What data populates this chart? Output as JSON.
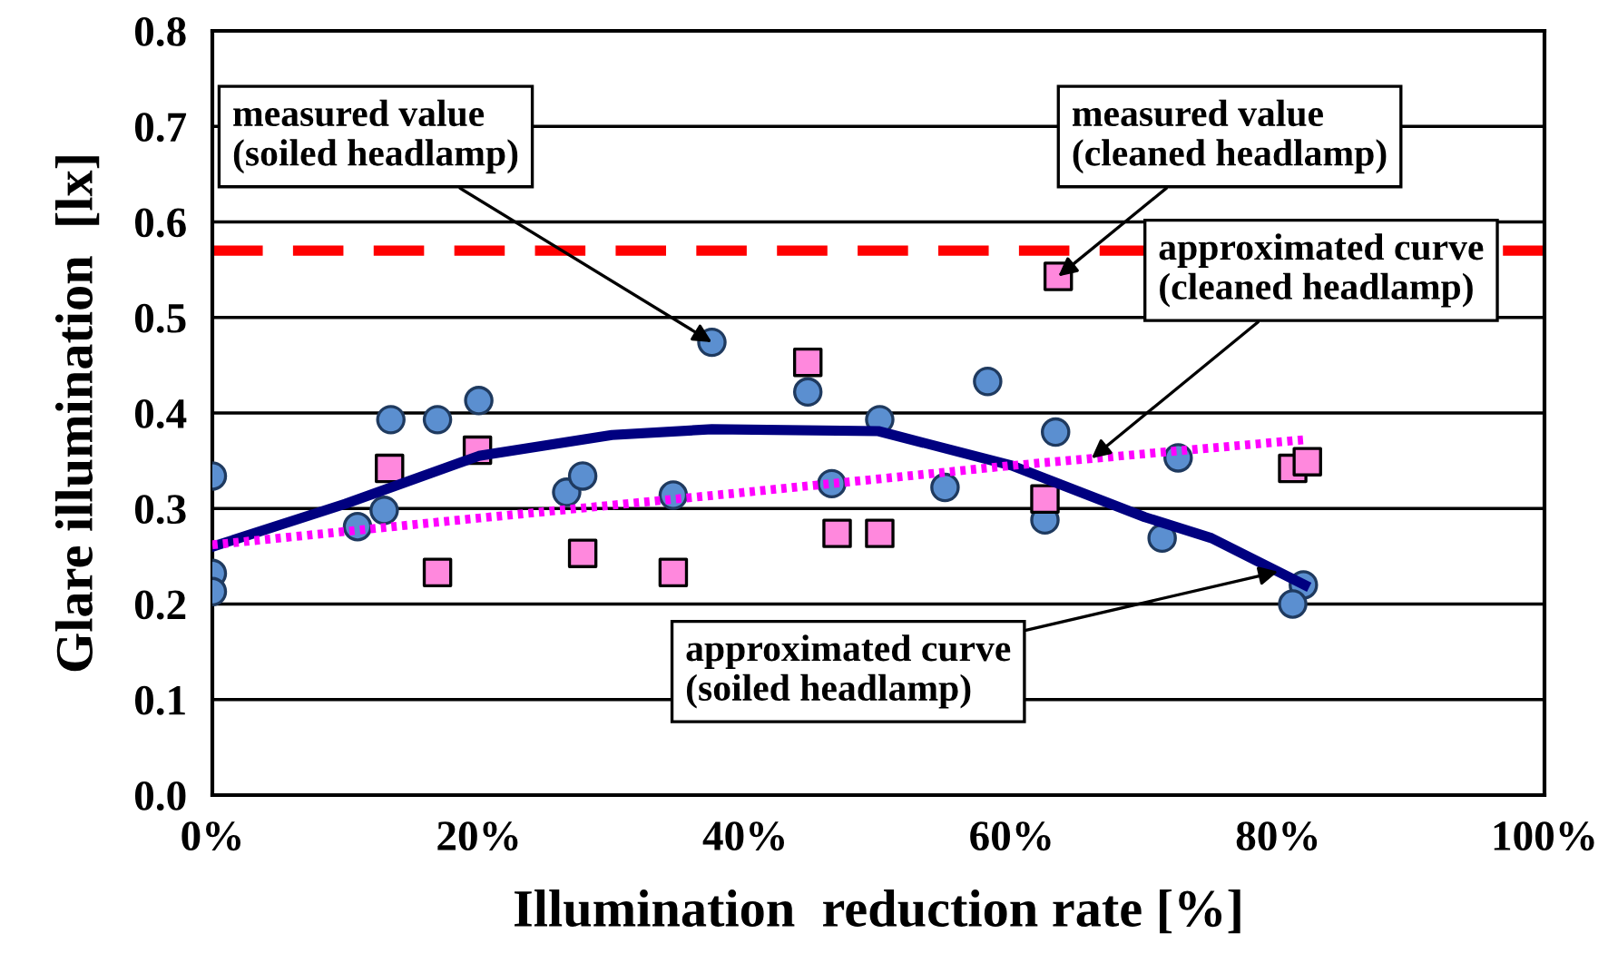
{
  "chart_data": {
    "type": "scatter",
    "xlabel": "Illumination  reduction rate [%]",
    "ylabel": "Glare illumination  [lx]",
    "xlim": [
      0,
      100
    ],
    "ylim": [
      0,
      0.8
    ],
    "xticks": [
      {
        "value": 0,
        "label": "0%"
      },
      {
        "value": 20,
        "label": "20%"
      },
      {
        "value": 40,
        "label": "40%"
      },
      {
        "value": 60,
        "label": "60%"
      },
      {
        "value": 80,
        "label": "80%"
      },
      {
        "value": 100,
        "label": "100%"
      }
    ],
    "yticks": [
      {
        "value": 0,
        "label": "0.0"
      },
      {
        "value": 0.1,
        "label": "0.1"
      },
      {
        "value": 0.2,
        "label": "0.2"
      },
      {
        "value": 0.3,
        "label": "0.3"
      },
      {
        "value": 0.4,
        "label": "0.4"
      },
      {
        "value": 0.5,
        "label": "0.5"
      },
      {
        "value": 0.6,
        "label": "0.6"
      },
      {
        "value": 0.7,
        "label": "0.7"
      },
      {
        "value": 0.8,
        "label": "0.8"
      }
    ],
    "grid": "y",
    "series": [
      {
        "type": "line",
        "color": "#000080",
        "line_style": "solid",
        "marker": "none",
        "x": [
          0,
          10,
          20,
          30,
          37.5,
          50,
          60,
          70,
          75,
          82
        ],
        "values": [
          0.26,
          0.305,
          0.355,
          0.377,
          0.383,
          0.381,
          0.345,
          0.291,
          0.269,
          0.22
        ]
      },
      {
        "type": "line",
        "color": "#ff00ff",
        "line_style": "dotted",
        "marker": "none",
        "x": [
          0,
          20,
          40,
          60,
          82
        ],
        "values": [
          0.262,
          0.29,
          0.317,
          0.345,
          0.372
        ]
      },
      {
        "color": "#5b8fd0",
        "marker": "circle",
        "x": [
          0,
          0,
          0,
          10.9,
          12.9,
          13.4,
          16.9,
          20,
          26.6,
          27.8,
          34.6,
          37.5,
          44.7,
          46.5,
          50.1,
          55,
          58.2,
          63.3,
          62.5,
          71.3,
          72.5,
          81.9,
          81.1
        ],
        "values": [
          0.334,
          0.232,
          0.213,
          0.281,
          0.298,
          0.393,
          0.393,
          0.413,
          0.317,
          0.334,
          0.314,
          0.474,
          0.422,
          0.326,
          0.393,
          0.322,
          0.433,
          0.38,
          0.288,
          0.269,
          0.353,
          0.22,
          0.2
        ]
      },
      {
        "color": "#ff88dd",
        "marker": "square",
        "x": [
          13.3,
          19.9,
          16.9,
          27.8,
          34.6,
          44.7,
          46.9,
          50.1,
          62.5,
          63.5,
          81.1,
          82.2
        ],
        "values": [
          0.342,
          0.361,
          0.233,
          0.253,
          0.233,
          0.453,
          0.274,
          0.274,
          0.31,
          0.543,
          0.342,
          0.349
        ]
      }
    ],
    "ref_lines": [
      {
        "axis": "y",
        "value": 0.57,
        "color": "#ff0000",
        "line_style": "dashed"
      }
    ],
    "annotations": [
      {
        "text": "measured value\n(soiled headlamp)",
        "x": 37.5,
        "y": 0.474
      },
      {
        "text": "measured value\n(cleaned headlamp)",
        "x": 63.5,
        "y": 0.543
      },
      {
        "text": "approximated curve\n(cleaned headlamp)",
        "x": 66,
        "y": 0.3524
      },
      {
        "text": "approximated curve\n(soiled headlamp)",
        "x": 80,
        "y": 0.234
      }
    ]
  }
}
